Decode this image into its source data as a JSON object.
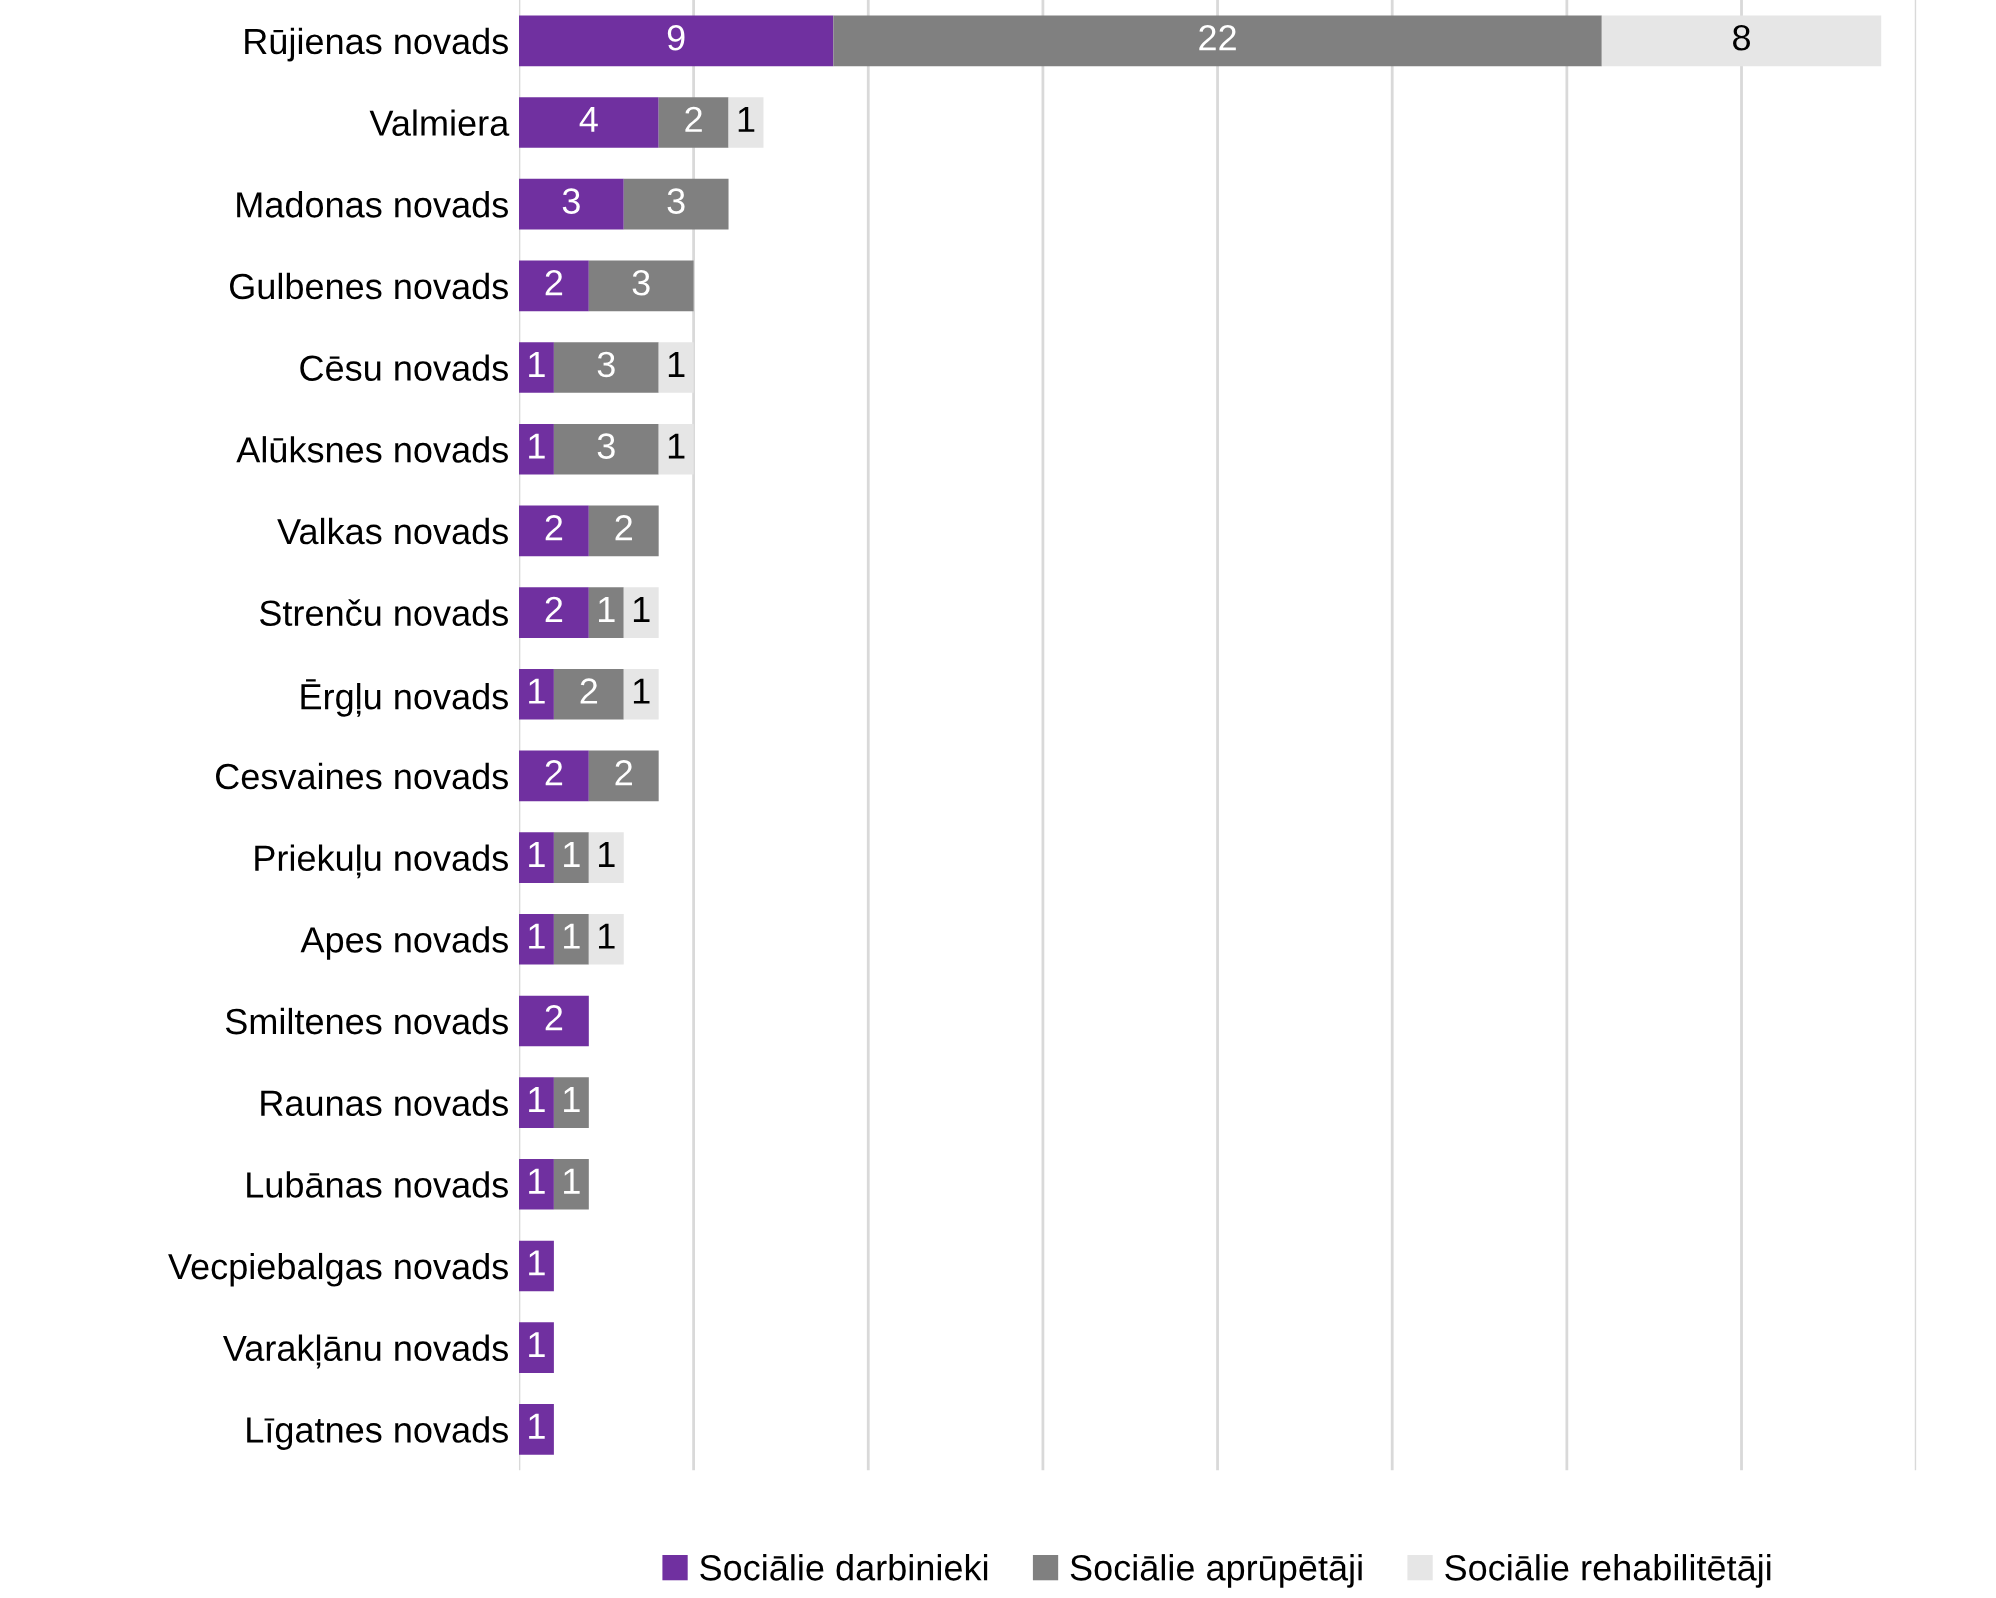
{
  "chart_data": {
    "type": "bar",
    "orientation": "horizontal",
    "stacked": true,
    "data_labels": true,
    "grid": "x",
    "legend": "bottom",
    "tick_labels": "y",
    "categories": [
      "Rūjienas novads",
      "Valmiera",
      "Madonas novads",
      "Gulbenes novads",
      "Cēsu novads",
      "Alūksnes novads",
      "Valkas novads",
      "Strenču novads",
      "Ērgļu novads",
      "Cesvaines novads",
      "Priekuļu novads",
      "Apes novads",
      "Smiltenes novads",
      "Raunas novads",
      "Lubānas novads",
      "Vecpiebalgas novads",
      "Varakļānu novads",
      "Līgatnes novads"
    ],
    "xlim": [
      0,
      40
    ],
    "xticks": [
      {
        "value": 0,
        "label": null
      },
      {
        "value": 5,
        "label": null
      },
      {
        "value": 10,
        "label": null
      },
      {
        "value": 15,
        "label": null
      },
      {
        "value": 20,
        "label": null
      },
      {
        "value": 25,
        "label": null
      },
      {
        "value": 30,
        "label": null
      },
      {
        "value": 35,
        "label": null
      },
      {
        "value": 40,
        "label": null
      }
    ],
    "series": [
      {
        "name": "Sociālie darbinieki",
        "color": "#7030a0",
        "values": [
          9,
          4,
          3,
          2,
          1,
          1,
          2,
          2,
          1,
          2,
          1,
          1,
          2,
          1,
          1,
          1,
          1,
          1
        ]
      },
      {
        "name": "Sociālie aprūpētāji",
        "color": "#808080",
        "values": [
          22,
          2,
          3,
          3,
          3,
          3,
          2,
          1,
          2,
          2,
          1,
          1,
          null,
          1,
          1,
          null,
          null,
          null
        ]
      },
      {
        "name": "Sociālie rehabilitētāji",
        "color": "#e6e6e6",
        "values": [
          8,
          1,
          null,
          null,
          1,
          1,
          null,
          1,
          1,
          null,
          1,
          1,
          null,
          null,
          null,
          null,
          null,
          null
        ]
      }
    ]
  }
}
